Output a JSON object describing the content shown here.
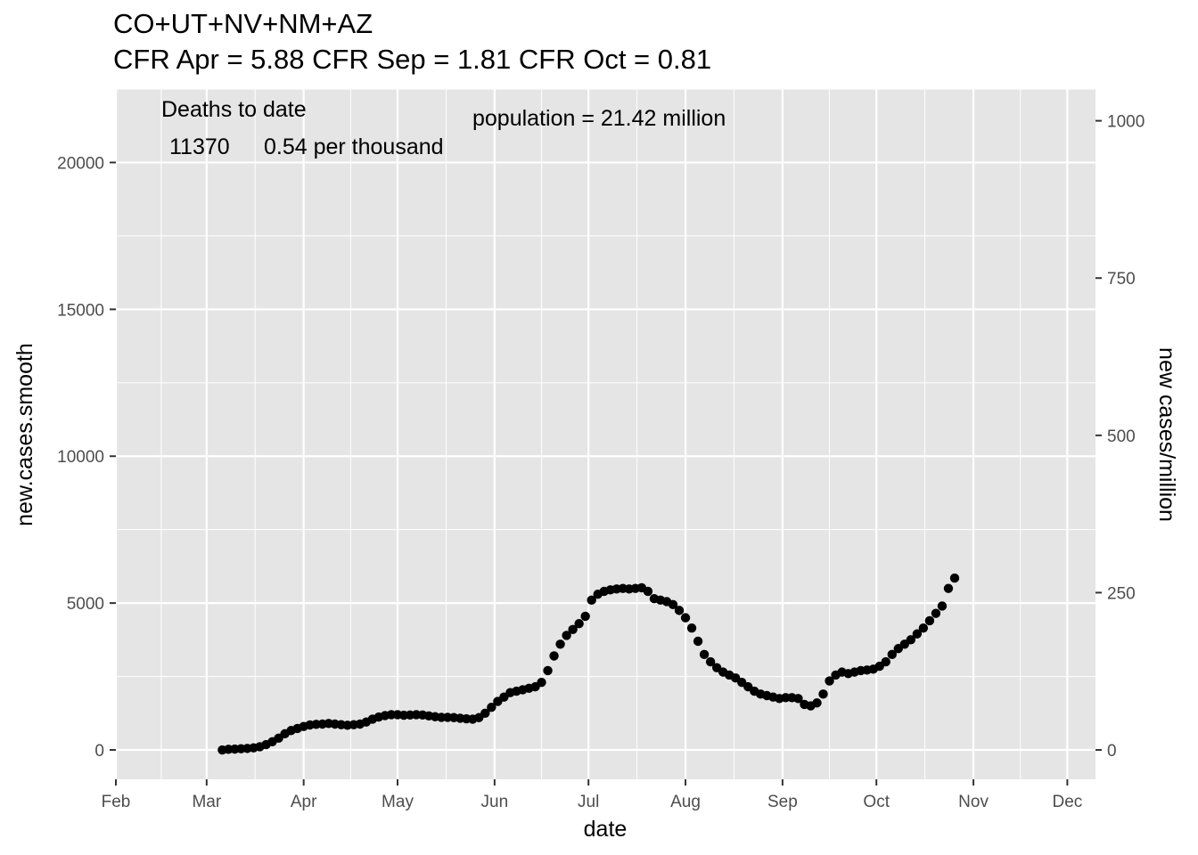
{
  "chart_data": {
    "type": "scatter",
    "title": "CO+UT+NV+NM+AZ",
    "subtitle": "CFR Apr = 5.88  CFR Sep = 1.81  CFR Oct = 0.81",
    "xlabel": "date",
    "ylabel": "new.cases.smooth",
    "y2label": "new cases/million",
    "xlim": [
      "2020-02-01",
      "2020-12-10"
    ],
    "ylim": [
      -1000,
      22500
    ],
    "x_ticks": [
      {
        "date": "2020-02-01",
        "label": "Feb"
      },
      {
        "date": "2020-03-01",
        "label": "Mar"
      },
      {
        "date": "2020-04-01",
        "label": "Apr"
      },
      {
        "date": "2020-05-01",
        "label": "May"
      },
      {
        "date": "2020-06-01",
        "label": "Jun"
      },
      {
        "date": "2020-07-01",
        "label": "Jul"
      },
      {
        "date": "2020-08-01",
        "label": "Aug"
      },
      {
        "date": "2020-09-01",
        "label": "Sep"
      },
      {
        "date": "2020-10-01",
        "label": "Oct"
      },
      {
        "date": "2020-11-01",
        "label": "Nov"
      },
      {
        "date": "2020-12-01",
        "label": "Dec"
      }
    ],
    "y_ticks": [
      0,
      5000,
      10000,
      15000,
      20000
    ],
    "y2_ticks": [
      0,
      250,
      500,
      750,
      1000
    ],
    "y2_scale_million": 21.42,
    "grid": true,
    "series": [
      {
        "points": [
          [
            "2020-03-06",
            0
          ],
          [
            "2020-03-08",
            20
          ],
          [
            "2020-03-10",
            30
          ],
          [
            "2020-03-12",
            40
          ],
          [
            "2020-03-14",
            50
          ],
          [
            "2020-03-16",
            70
          ],
          [
            "2020-03-18",
            110
          ],
          [
            "2020-03-20",
            180
          ],
          [
            "2020-03-22",
            280
          ],
          [
            "2020-03-24",
            400
          ],
          [
            "2020-03-26",
            550
          ],
          [
            "2020-03-28",
            660
          ],
          [
            "2020-03-30",
            730
          ],
          [
            "2020-04-01",
            800
          ],
          [
            "2020-04-03",
            850
          ],
          [
            "2020-04-05",
            870
          ],
          [
            "2020-04-07",
            880
          ],
          [
            "2020-04-09",
            900
          ],
          [
            "2020-04-11",
            880
          ],
          [
            "2020-04-13",
            860
          ],
          [
            "2020-04-15",
            840
          ],
          [
            "2020-04-17",
            860
          ],
          [
            "2020-04-19",
            880
          ],
          [
            "2020-04-21",
            950
          ],
          [
            "2020-04-23",
            1050
          ],
          [
            "2020-04-25",
            1120
          ],
          [
            "2020-04-27",
            1170
          ],
          [
            "2020-04-29",
            1200
          ],
          [
            "2020-05-01",
            1200
          ],
          [
            "2020-05-03",
            1180
          ],
          [
            "2020-05-05",
            1190
          ],
          [
            "2020-05-07",
            1200
          ],
          [
            "2020-05-09",
            1190
          ],
          [
            "2020-05-11",
            1160
          ],
          [
            "2020-05-13",
            1130
          ],
          [
            "2020-05-15",
            1110
          ],
          [
            "2020-05-17",
            1110
          ],
          [
            "2020-05-19",
            1100
          ],
          [
            "2020-05-21",
            1080
          ],
          [
            "2020-05-23",
            1060
          ],
          [
            "2020-05-25",
            1050
          ],
          [
            "2020-05-27",
            1100
          ],
          [
            "2020-05-29",
            1250
          ],
          [
            "2020-05-31",
            1450
          ],
          [
            "2020-06-02",
            1650
          ],
          [
            "2020-06-04",
            1800
          ],
          [
            "2020-06-06",
            1950
          ],
          [
            "2020-06-08",
            2000
          ],
          [
            "2020-06-10",
            2050
          ],
          [
            "2020-06-12",
            2100
          ],
          [
            "2020-06-14",
            2150
          ],
          [
            "2020-06-16",
            2300
          ],
          [
            "2020-06-18",
            2700
          ],
          [
            "2020-06-20",
            3200
          ],
          [
            "2020-06-22",
            3600
          ],
          [
            "2020-06-24",
            3900
          ],
          [
            "2020-06-26",
            4100
          ],
          [
            "2020-06-28",
            4300
          ],
          [
            "2020-06-30",
            4550
          ],
          [
            "2020-07-02",
            5100
          ],
          [
            "2020-07-04",
            5300
          ],
          [
            "2020-07-06",
            5400
          ],
          [
            "2020-07-08",
            5450
          ],
          [
            "2020-07-10",
            5480
          ],
          [
            "2020-07-12",
            5500
          ],
          [
            "2020-07-14",
            5480
          ],
          [
            "2020-07-16",
            5500
          ],
          [
            "2020-07-18",
            5520
          ],
          [
            "2020-07-20",
            5400
          ],
          [
            "2020-07-22",
            5150
          ],
          [
            "2020-07-24",
            5100
          ],
          [
            "2020-07-26",
            5050
          ],
          [
            "2020-07-28",
            4950
          ],
          [
            "2020-07-30",
            4750
          ],
          [
            "2020-08-01",
            4500
          ],
          [
            "2020-08-03",
            4150
          ],
          [
            "2020-08-05",
            3700
          ],
          [
            "2020-08-07",
            3250
          ],
          [
            "2020-08-09",
            3000
          ],
          [
            "2020-08-11",
            2800
          ],
          [
            "2020-08-13",
            2650
          ],
          [
            "2020-08-15",
            2550
          ],
          [
            "2020-08-17",
            2450
          ],
          [
            "2020-08-19",
            2300
          ],
          [
            "2020-08-21",
            2150
          ],
          [
            "2020-08-23",
            2000
          ],
          [
            "2020-08-25",
            1900
          ],
          [
            "2020-08-27",
            1850
          ],
          [
            "2020-08-29",
            1800
          ],
          [
            "2020-08-31",
            1750
          ],
          [
            "2020-09-02",
            1780
          ],
          [
            "2020-09-04",
            1780
          ],
          [
            "2020-09-06",
            1750
          ],
          [
            "2020-09-08",
            1550
          ],
          [
            "2020-09-10",
            1500
          ],
          [
            "2020-09-12",
            1600
          ],
          [
            "2020-09-14",
            1900
          ],
          [
            "2020-09-16",
            2350
          ],
          [
            "2020-09-18",
            2550
          ],
          [
            "2020-09-20",
            2650
          ],
          [
            "2020-09-22",
            2600
          ],
          [
            "2020-09-24",
            2650
          ],
          [
            "2020-09-26",
            2700
          ],
          [
            "2020-09-28",
            2720
          ],
          [
            "2020-09-30",
            2750
          ],
          [
            "2020-10-02",
            2850
          ],
          [
            "2020-10-04",
            3000
          ],
          [
            "2020-10-06",
            3250
          ],
          [
            "2020-10-08",
            3450
          ],
          [
            "2020-10-10",
            3600
          ],
          [
            "2020-10-12",
            3750
          ],
          [
            "2020-10-14",
            3950
          ],
          [
            "2020-10-16",
            4150
          ],
          [
            "2020-10-18",
            4400
          ],
          [
            "2020-10-20",
            4650
          ],
          [
            "2020-10-22",
            4900
          ],
          [
            "2020-10-24",
            5500
          ],
          [
            "2020-10-26",
            5850
          ]
        ]
      }
    ],
    "annotations": [
      {
        "id": "deaths-title",
        "text": "Deaths to date"
      },
      {
        "id": "deaths-count",
        "text": "11370"
      },
      {
        "id": "deaths-rate",
        "text": "0.54 per thousand"
      },
      {
        "id": "population",
        "text": "population = 21.42 million"
      }
    ]
  },
  "colors": {
    "panel": "#e5e5e5",
    "grid": "#ffffff",
    "points": "#000000",
    "tick": "#333333"
  }
}
